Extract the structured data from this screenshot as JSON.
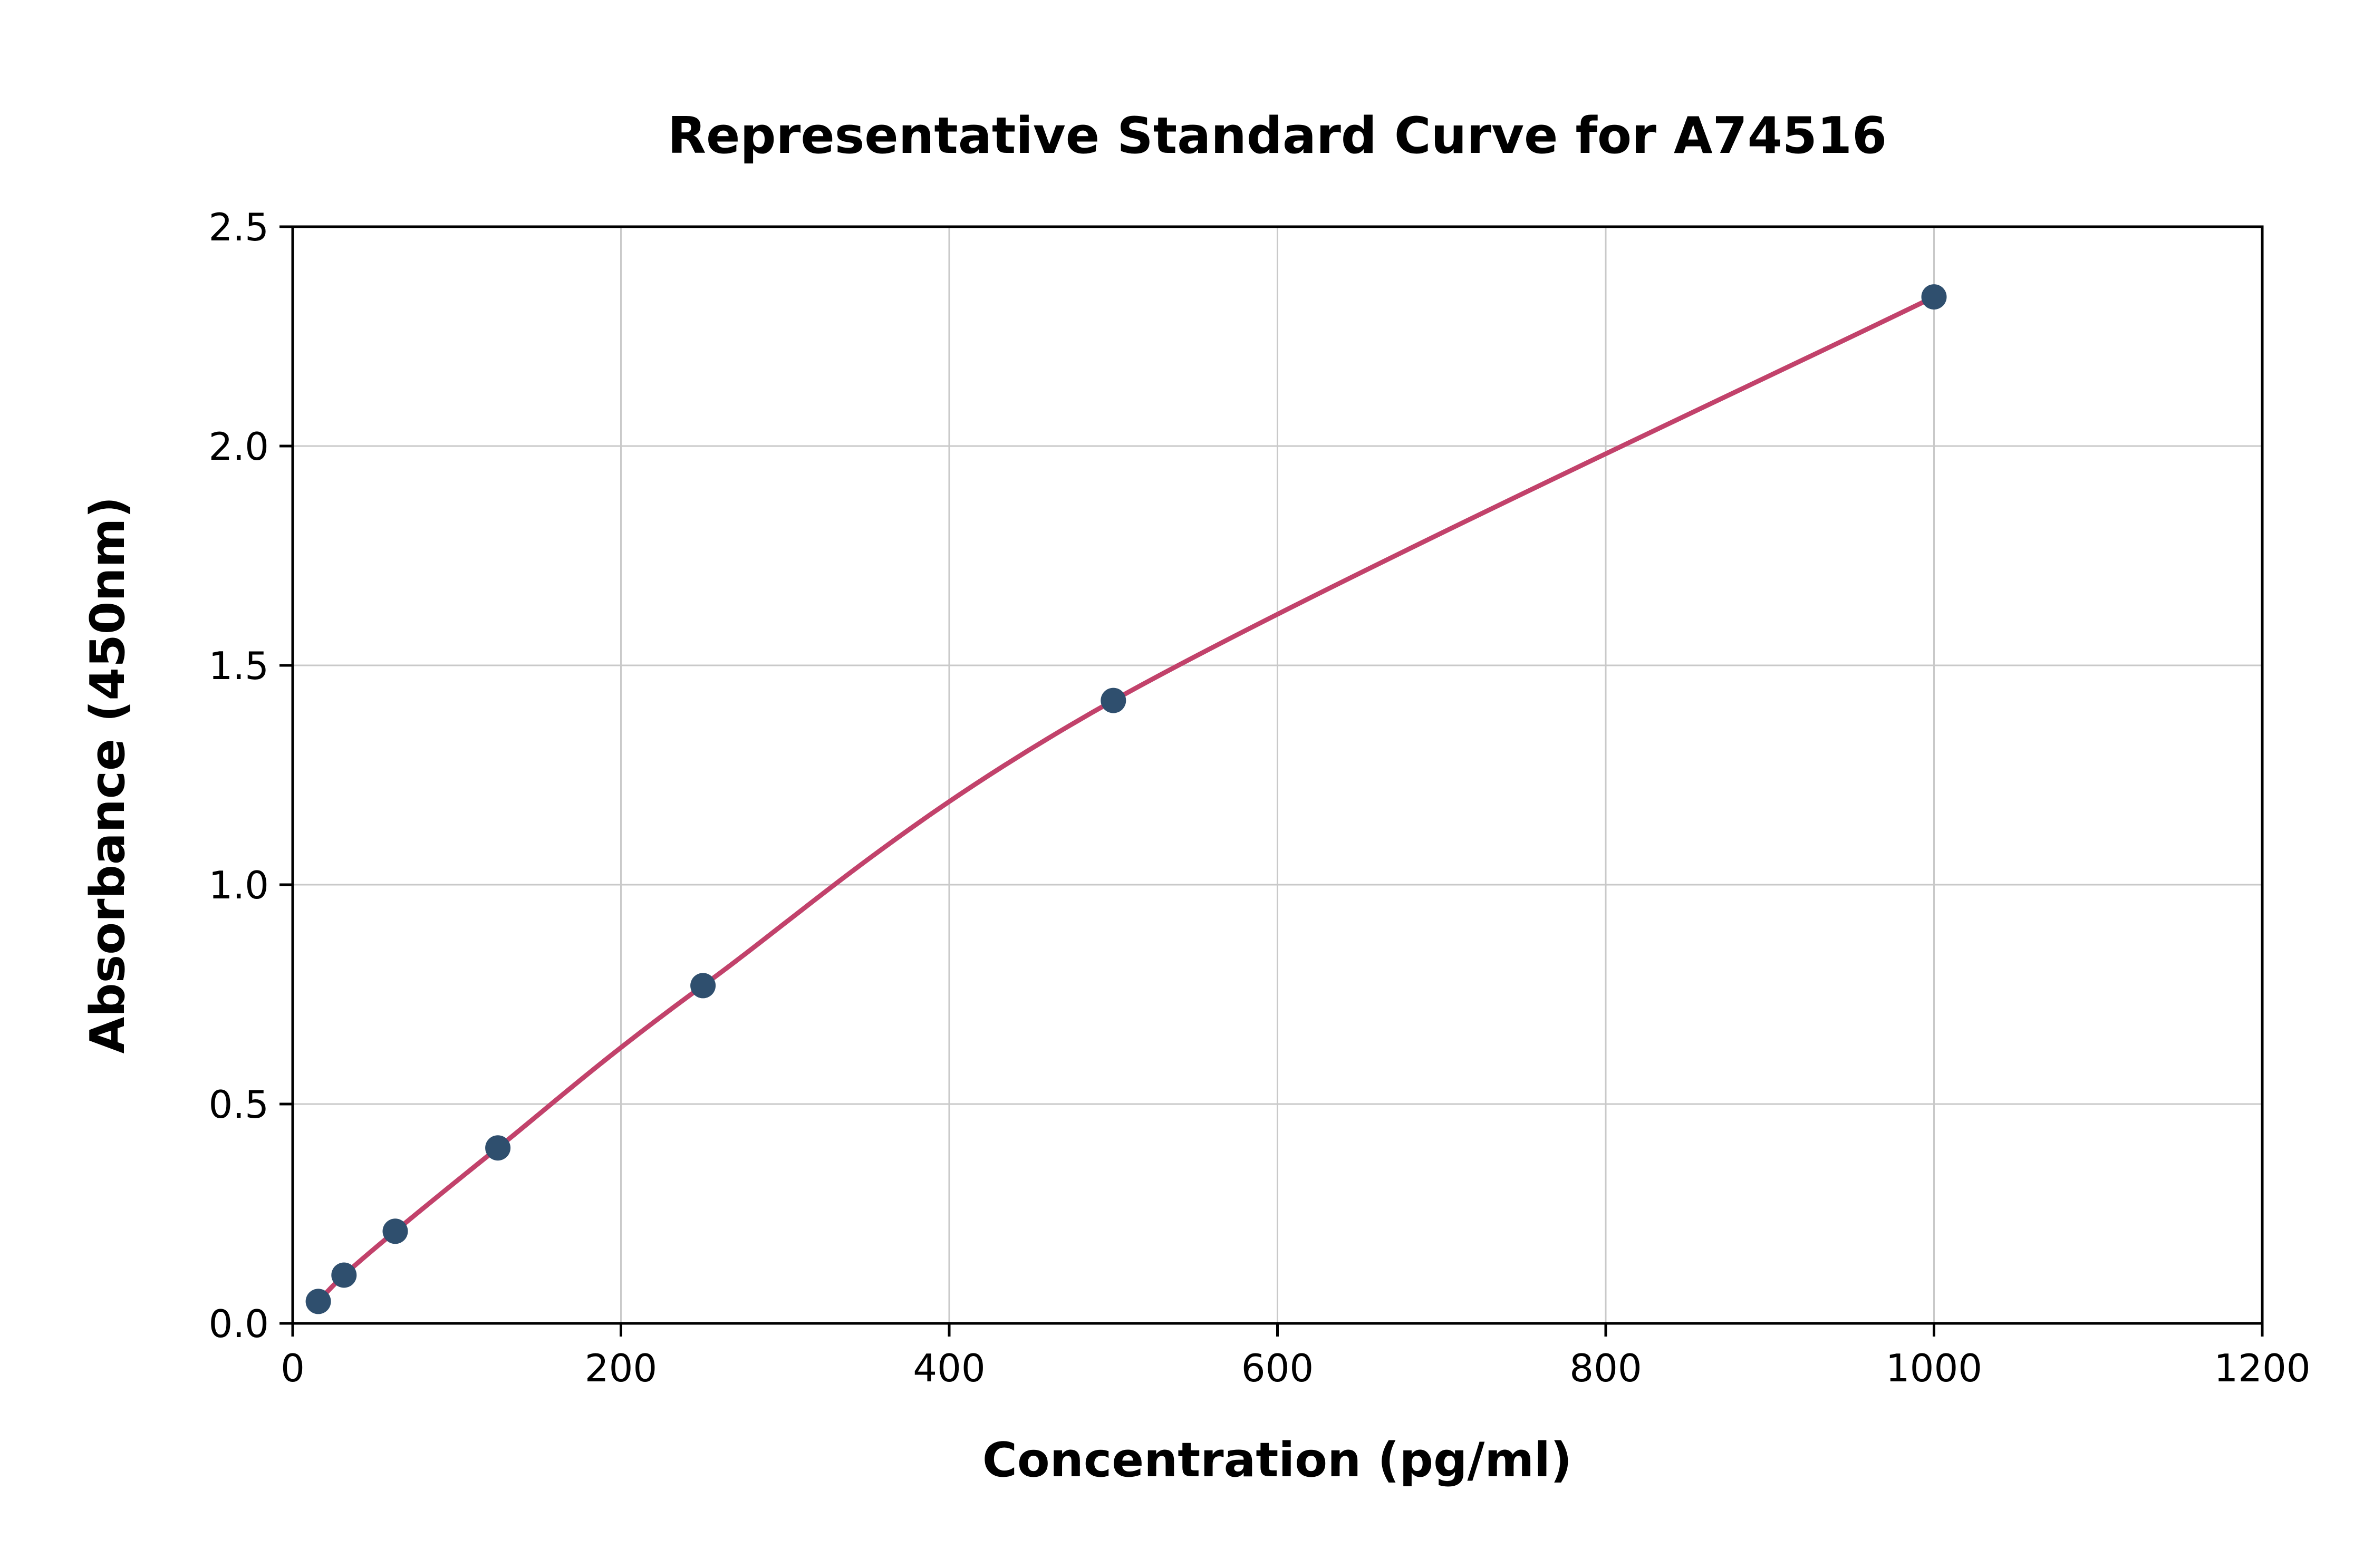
{
  "chart_data": {
    "type": "scatter",
    "title": "Representative Standard Curve for A74516",
    "xlabel": "Concentration (pg/ml)",
    "ylabel": "Absorbance (450nm)",
    "xlim": [
      0,
      1200
    ],
    "ylim": [
      0,
      2.5
    ],
    "x_ticks": [
      0,
      200,
      400,
      600,
      800,
      1000,
      1200
    ],
    "x_tick_labels": [
      "0",
      "200",
      "400",
      "600",
      "800",
      "1000",
      "1200"
    ],
    "y_ticks": [
      0,
      0.5,
      1.0,
      1.5,
      2.0,
      2.5
    ],
    "y_tick_labels": [
      "0.0",
      "0.5",
      "1.0",
      "1.5",
      "2.0",
      "2.5"
    ],
    "grid": true,
    "legend": "none",
    "points": [
      {
        "x": 15.6,
        "y": 0.05
      },
      {
        "x": 31.25,
        "y": 0.11
      },
      {
        "x": 62.5,
        "y": 0.21
      },
      {
        "x": 125,
        "y": 0.4
      },
      {
        "x": 250,
        "y": 0.77
      },
      {
        "x": 500,
        "y": 1.42
      },
      {
        "x": 1000,
        "y": 2.34
      }
    ],
    "line_color": "#c2426b",
    "point_color": "#2f4f6e",
    "grid_color": "#c9c9c9",
    "frame_color": "#000000"
  }
}
